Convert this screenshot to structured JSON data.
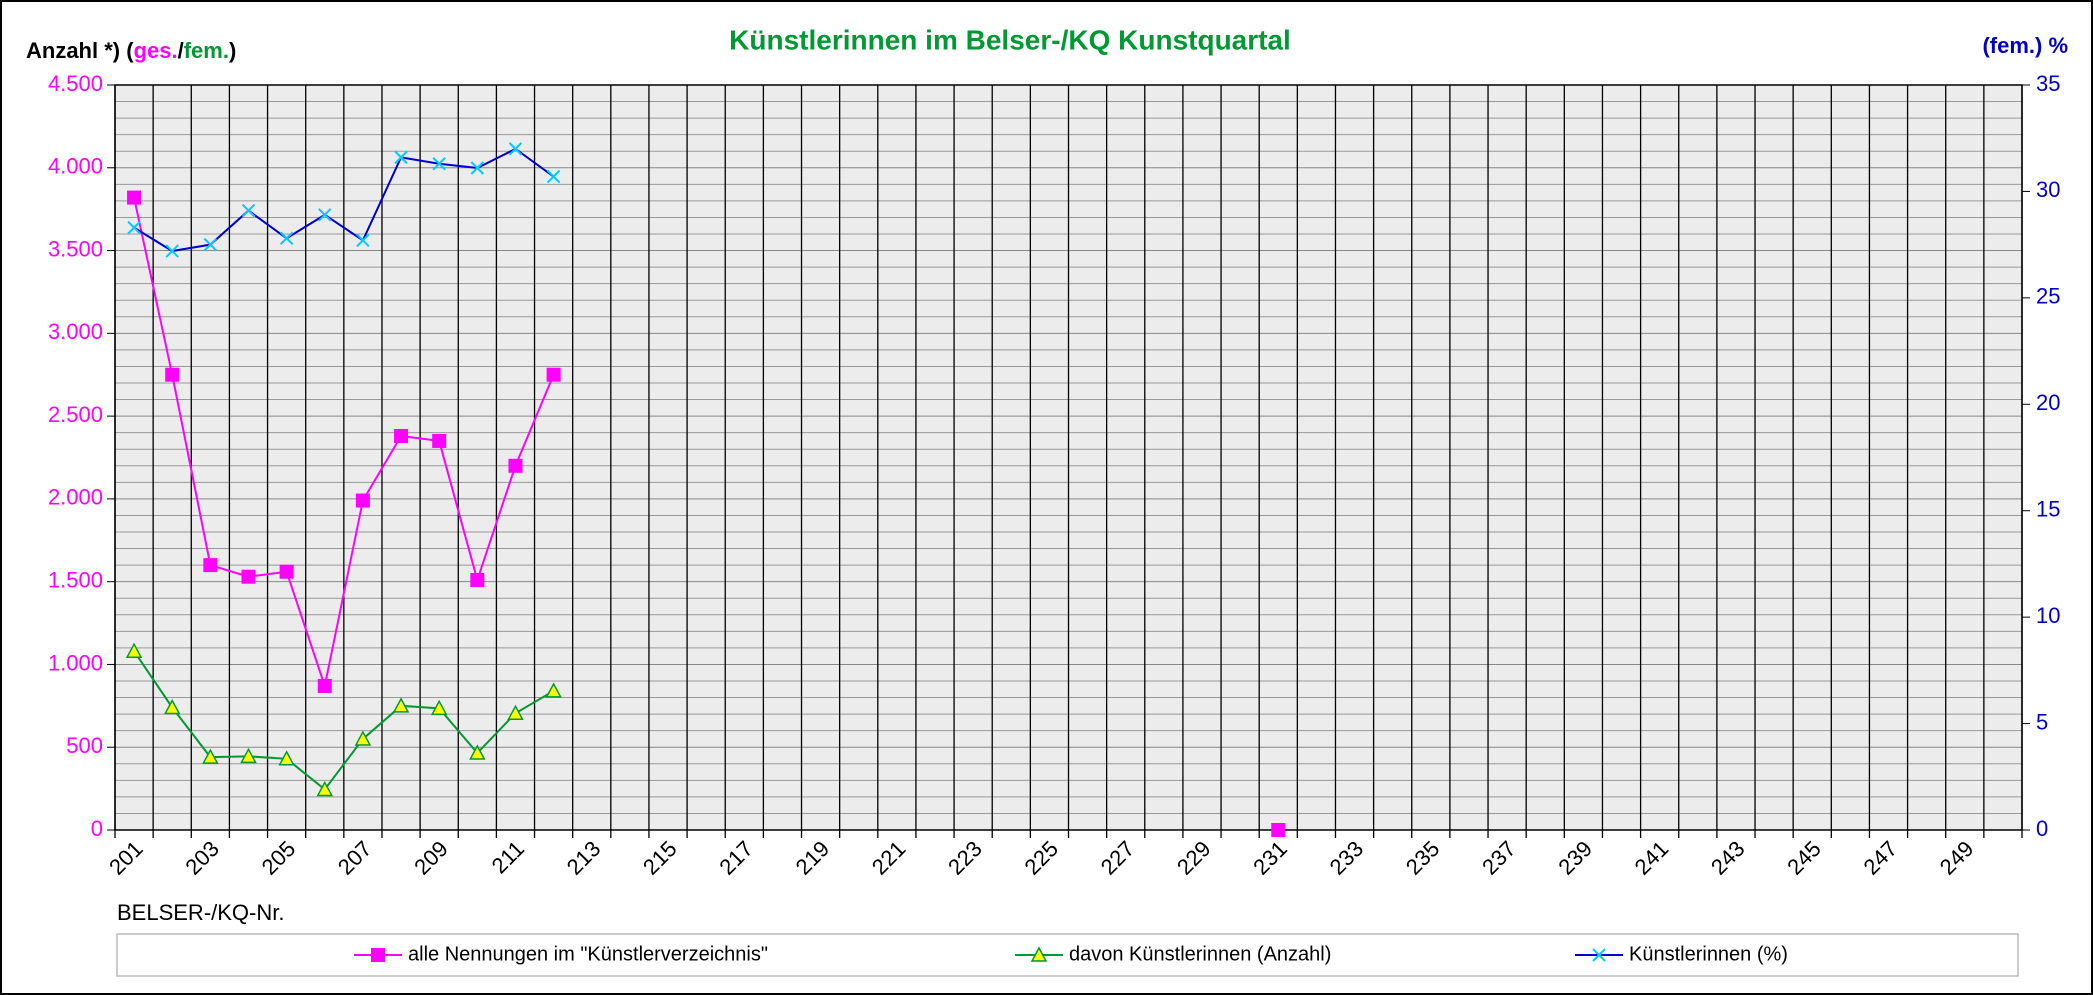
{
  "chart_data": {
    "type": "line",
    "title": "Künstlerinnen im Belser-/KQ Kunstquartal",
    "y_label_parts": [
      {
        "text": "Anzahl *) (",
        "color": "#000000"
      },
      {
        "text": "ges.",
        "color": "#ff00ff"
      },
      {
        "text": "/",
        "color": "#000000"
      },
      {
        "text": "fem.",
        "color": "#009933"
      },
      {
        "text": ")",
        "color": "#000000"
      }
    ],
    "y2_label": "(fem.) %",
    "x_label": "BELSER-/KQ-Nr.",
    "categories": [
      "201",
      null,
      "203",
      null,
      "205",
      null,
      "207",
      null,
      "209",
      null,
      "211",
      null,
      "213",
      null,
      "215",
      null,
      "217",
      null,
      "219",
      null,
      "221",
      null,
      "223",
      null,
      "225",
      null,
      "227",
      null,
      "229",
      null,
      "231",
      null,
      "233",
      null,
      "235",
      null,
      "237",
      null,
      "239",
      null,
      "241",
      null,
      "243",
      null,
      "245",
      null,
      "247",
      null,
      "249",
      null
    ],
    "ylim": [
      0,
      4500
    ],
    "yticks": [
      0,
      500,
      {
        "value": 1000,
        "label": "1.000"
      },
      {
        "value": 1500,
        "label": "1.500"
      },
      {
        "value": 2000,
        "label": "2.000"
      },
      {
        "value": 2500,
        "label": "2.500"
      },
      {
        "value": 3000,
        "label": "3.000"
      },
      {
        "value": 3500,
        "label": "3.500"
      },
      {
        "value": 4000,
        "label": "4.000"
      },
      {
        "value": 4500,
        "label": "4.500"
      }
    ],
    "y2lim": [
      0,
      35
    ],
    "y2ticks": [
      0,
      5,
      10,
      15,
      20,
      25,
      30,
      35
    ],
    "grid": true,
    "legend": "bottom",
    "series": [
      {
        "name": "alle Nennungen im \"Künstlerverzeichnis\"",
        "color": "#ff00ff",
        "marker": "square",
        "marker_color": "#ff00ff",
        "values": [
          3820,
          2750,
          1600,
          1530,
          1560,
          870,
          1990,
          2380,
          2350,
          1510,
          2200,
          2750,
          null,
          null,
          null,
          null,
          null,
          null,
          null,
          null,
          null,
          null,
          null,
          null,
          null,
          null,
          null,
          null,
          null,
          null,
          0,
          null,
          null,
          null,
          null,
          null,
          null,
          null,
          null,
          null,
          null,
          null,
          null,
          null,
          null,
          null,
          null,
          null,
          null,
          null
        ]
      },
      {
        "name": "davon Künstlerinnen (Anzahl)",
        "color": "#009933",
        "marker": "triangle",
        "marker_color": "#ffff00",
        "values": [
          1080,
          740,
          440,
          445,
          430,
          245,
          550,
          750,
          735,
          465,
          705,
          840,
          null,
          null,
          null,
          null,
          null,
          null,
          null,
          null,
          null,
          null,
          null,
          null,
          null,
          null,
          null,
          null,
          null,
          null,
          null,
          null,
          null,
          null,
          null,
          null,
          null,
          null,
          null,
          null,
          null,
          null,
          null,
          null,
          null,
          null,
          null,
          null,
          null,
          null
        ]
      },
      {
        "name": "Künstlerinnen (%)",
        "color": "#0000cc",
        "marker": "x",
        "marker_color": "#00ccff",
        "axis": "y2",
        "values": [
          28.3,
          27.2,
          27.5,
          29.1,
          27.8,
          28.9,
          27.7,
          31.6,
          31.3,
          31.1,
          32.0,
          30.7,
          null,
          null,
          null,
          null,
          null,
          null,
          null,
          null,
          null,
          null,
          null,
          null,
          null,
          null,
          null,
          null,
          null,
          null,
          null,
          null,
          null,
          null,
          null,
          null,
          null,
          null,
          null,
          null,
          null,
          null,
          null,
          null,
          null,
          null,
          null,
          null,
          null,
          null
        ]
      }
    ]
  }
}
